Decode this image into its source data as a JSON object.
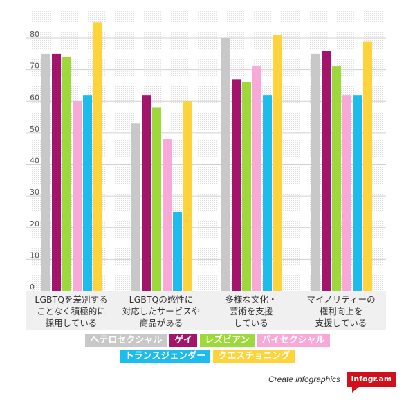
{
  "chart_data": {
    "type": "bar",
    "y_ticks": [
      "0",
      "10",
      "20",
      "30",
      "40",
      "50",
      "60",
      "70",
      "80"
    ],
    "ylim": [
      0,
      89
    ],
    "grid": true,
    "categories": [
      [
        "LGBTQを差別する",
        "ことなく積極的に",
        "採用している"
      ],
      [
        "LGBTQの感性に",
        "対応したサービスや",
        "商品がある"
      ],
      [
        "多様な文化・",
        "芸術を支援",
        "している"
      ],
      [
        "マイノリティーの",
        "権利向上を",
        "支援している"
      ]
    ],
    "series": [
      {
        "name": "ヘテロセクシャル",
        "color": "#c8c8c8",
        "values": [
          75,
          53,
          80,
          75
        ]
      },
      {
        "name": "ゲイ",
        "color": "#a3146b",
        "values": [
          75,
          62,
          67,
          76
        ]
      },
      {
        "name": "レズビアン",
        "color": "#9dd93a",
        "values": [
          74,
          58,
          66,
          71
        ]
      },
      {
        "name": "バイセクシャル",
        "color": "#f9a9d8",
        "values": [
          60,
          48,
          71,
          62
        ]
      },
      {
        "name": "トランスジェンダー",
        "color": "#1cbcef",
        "values": [
          62,
          25,
          62,
          62
        ]
      },
      {
        "name": "クエスチョニング",
        "color": "#ffd43b",
        "values": [
          85,
          60,
          81,
          79
        ]
      }
    ],
    "legend_placement": "bottom"
  },
  "footer": {
    "create_text": "Create infographics",
    "logo_text": "infogr.am"
  }
}
